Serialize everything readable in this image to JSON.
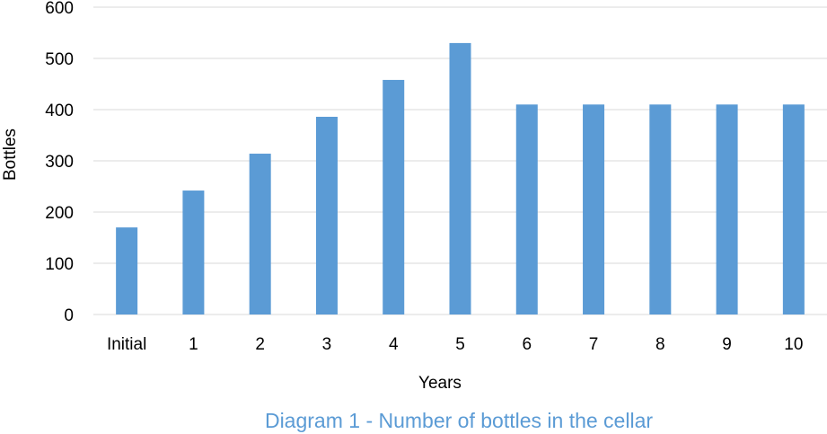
{
  "chart_data": {
    "type": "bar",
    "title": "",
    "xlabel": "Years",
    "ylabel": "Bottles",
    "categories": [
      "Initial",
      "1",
      "2",
      "3",
      "4",
      "5",
      "6",
      "7",
      "8",
      "9",
      "10"
    ],
    "values": [
      170,
      242,
      314,
      386,
      458,
      530,
      410,
      410,
      410,
      410,
      410
    ],
    "ylim": [
      0,
      600
    ],
    "yticks": [
      "0",
      "100",
      "200",
      "300",
      "400",
      "500",
      "600"
    ],
    "grid": true,
    "legend": "none",
    "bar_color": "#5b9bd5",
    "grid_color": "#d9d9d9",
    "caption": "Diagram 1 - Number of bottles in the cellar",
    "caption_color": "#5b9bd5"
  }
}
